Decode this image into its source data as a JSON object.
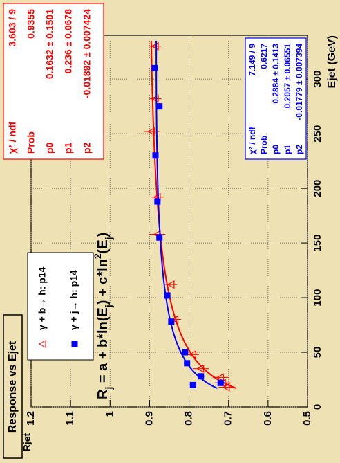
{
  "chart_data": {
    "type": "scatter",
    "title": "Response vs Ejet",
    "x_label": "Ejet (GeV)",
    "y_label": "Rjet",
    "formula": [
      "R",
      "j",
      " = a + b*ln(E",
      "j",
      ") + c*ln",
      "2",
      "(E",
      "j",
      ")"
    ],
    "xlim": [
      0,
      340
    ],
    "ylim": [
      0.5,
      1.2
    ],
    "xticks": [
      0,
      50,
      100,
      150,
      200,
      250,
      300
    ],
    "yticks": [
      0.5,
      0.6,
      0.7,
      0.8,
      0.9,
      1,
      1.1,
      1.2
    ],
    "grid": true,
    "series": [
      {
        "name": "γ + b→ h: p14",
        "color": "#ff0000",
        "marker": "triangle",
        "x": [
          18,
          22,
          27,
          35,
          48,
          80,
          112,
          158,
          192,
          252,
          282,
          330
        ],
        "values": [
          0.705,
          0.715,
          0.72,
          0.77,
          0.79,
          0.835,
          0.845,
          0.88,
          0.88,
          0.895,
          0.885,
          0.885
        ],
        "err": [
          0.02,
          0.02,
          0.02,
          0.02,
          0.015,
          0.015,
          0.015,
          0.02,
          0.015,
          0.02,
          0.015,
          0.015
        ],
        "fit": [
          0.1632,
          0.236,
          -0.01892
        ],
        "fit_range": [
          17,
          335
        ],
        "stats": [
          [
            "χ² / ndf",
            "3.603 / 9"
          ],
          [
            "Prob",
            "0.9355"
          ],
          [
            "p0",
            "0.1632 ± 0.1501"
          ],
          [
            "p1",
            "0.236 ± 0.0678"
          ],
          [
            "p2",
            "-0.01892 ± 0.007424"
          ]
        ]
      },
      {
        "name": "γ + j→ h: p14",
        "color": "#0000ff",
        "marker": "square",
        "x": [
          20,
          22,
          28,
          40,
          50,
          78,
          102,
          155,
          188,
          230,
          275,
          310
        ],
        "values": [
          0.79,
          0.72,
          0.77,
          0.805,
          0.81,
          0.845,
          0.855,
          0.875,
          0.88,
          0.885,
          0.875,
          0.887
        ],
        "err": [
          0.01,
          0.012,
          0.01,
          0.008,
          0.008,
          0.007,
          0.006,
          0.006,
          0.005,
          0.006,
          0.008,
          0.009
        ],
        "fit": [
          0.2884,
          0.2057,
          -0.01779
        ],
        "fit_range": [
          17,
          335
        ],
        "stats": [
          [
            "χ² / ndf",
            "7.149 / 9"
          ],
          [
            "Prob",
            "0.6217"
          ],
          [
            "p0",
            "0.2884 ± 0.1413"
          ],
          [
            "p1",
            "0.2057 ± 0.06551"
          ],
          [
            "p2",
            "-0.01779 ± 0.007394"
          ]
        ]
      }
    ]
  }
}
